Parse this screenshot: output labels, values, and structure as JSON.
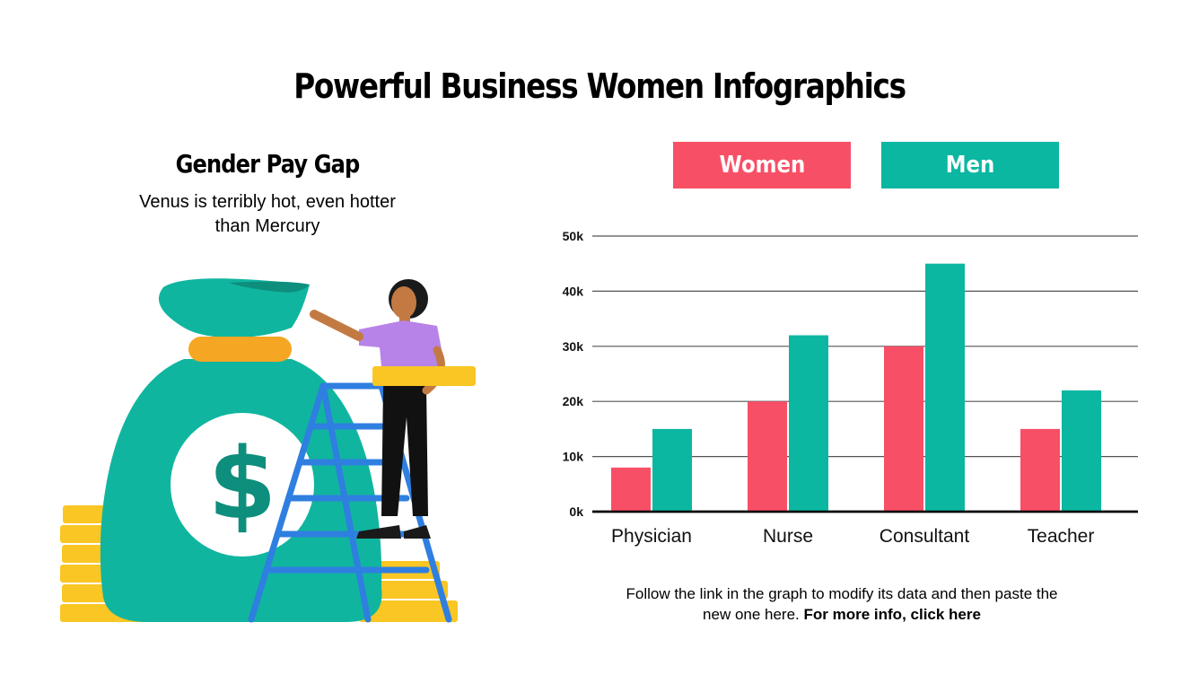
{
  "title": "Powerful Business Women Infographics",
  "left_panel": {
    "heading": "Gender Pay Gap",
    "description": "Venus is terribly hot, even hotter than Mercury"
  },
  "legend": {
    "women_label": "Women",
    "men_label": "Men"
  },
  "colors": {
    "women": "#f75066",
    "men": "#0bb7a1",
    "bag": "#10b59f",
    "coin": "#f9c623",
    "tie": "#f5a623",
    "ladder": "#2f7fe0",
    "shirt": "#b883e8"
  },
  "chart_data": {
    "type": "bar",
    "categories": [
      "Physician",
      "Nurse",
      "Consultant",
      "Teacher"
    ],
    "series": [
      {
        "name": "Women",
        "values": [
          8,
          20,
          30,
          15
        ]
      },
      {
        "name": "Men",
        "values": [
          15,
          32,
          45,
          22
        ]
      }
    ],
    "y_ticks": [
      "0k",
      "10k",
      "20k",
      "30k",
      "40k",
      "50k"
    ],
    "ylim": [
      0,
      50
    ],
    "grid": true,
    "legend_position": "top"
  },
  "footer": {
    "text": "Follow the link in the graph to modify its data and then paste the new one here.",
    "link_text": "For more info, click here"
  }
}
